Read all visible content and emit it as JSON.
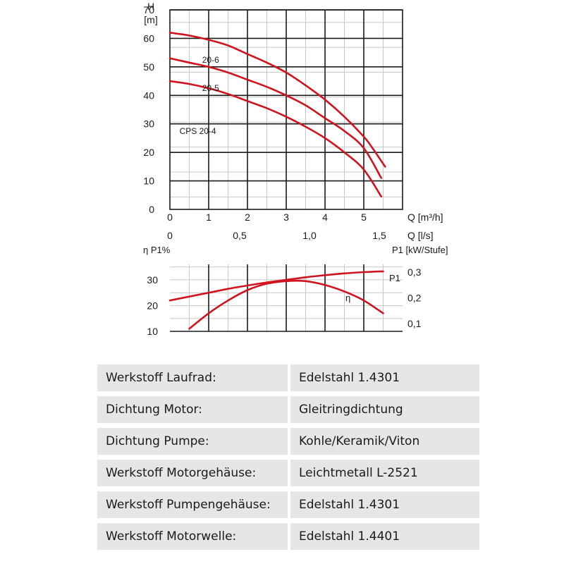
{
  "chart_data": [
    {
      "type": "line",
      "title": "",
      "ylabel_top": "H",
      "ylabel_unit": "[m]",
      "xlabel": "Q [m³/h]",
      "x2label": "Q [l/s]",
      "xlim": [
        0,
        6
      ],
      "ylim": [
        0,
        70
      ],
      "x_ticks": [
        "0",
        "1",
        "2",
        "3",
        "4",
        "5"
      ],
      "x2_ticks": [
        {
          "value": 0,
          "label": "0"
        },
        {
          "value": 0.5,
          "label": "0,5"
        },
        {
          "value": 1.0,
          "label": "1,0"
        },
        {
          "value": 1.5,
          "label": "1,5"
        }
      ],
      "y_ticks": [
        "0",
        "10",
        "20",
        "30",
        "40",
        "50",
        "60",
        "70"
      ],
      "series": [
        {
          "name": "20-6",
          "x": [
            0,
            0.5,
            1,
            1.5,
            2,
            2.5,
            3,
            3.5,
            4,
            4.5,
            5,
            5.2,
            5.55
          ],
          "y": [
            62,
            61,
            59.5,
            57.5,
            54.5,
            51.5,
            48,
            43.5,
            38.5,
            32.5,
            25.5,
            22,
            15
          ]
        },
        {
          "name": "20-5",
          "x": [
            0,
            0.5,
            1,
            1.5,
            2,
            2.5,
            3,
            3.5,
            4,
            4.5,
            5,
            5.45
          ],
          "y": [
            53,
            51.5,
            50,
            48,
            45.5,
            43,
            40,
            36.5,
            32,
            27.5,
            21.5,
            11
          ]
        },
        {
          "name": "CPS 20-4",
          "x": [
            0,
            0.5,
            1,
            1.5,
            2,
            2.5,
            3,
            3.5,
            4,
            4.5,
            5,
            5.45
          ],
          "y": [
            45,
            44,
            42.5,
            40.5,
            38,
            35.5,
            32.5,
            29,
            25,
            20,
            14,
            4.5
          ]
        }
      ],
      "grid": true
    },
    {
      "type": "line",
      "title": "",
      "ylabel_left": "η P1%",
      "ylabel_right": "P1 [kW/Stufe]",
      "xlim": [
        0,
        6
      ],
      "y_ticks_left": [
        "10",
        "20",
        "30"
      ],
      "y_ticks_right": [
        "0,1",
        "0,2",
        "0,3"
      ],
      "ylim_left": [
        10,
        36
      ],
      "ylim_right": [
        0.07,
        0.33
      ],
      "series": [
        {
          "name": "P1",
          "x": [
            0,
            0.5,
            1,
            1.5,
            2,
            2.5,
            3,
            3.5,
            4,
            4.5,
            5,
            5.5
          ],
          "y": [
            0.19,
            0.205,
            0.22,
            0.235,
            0.248,
            0.26,
            0.27,
            0.28,
            0.288,
            0.295,
            0.3,
            0.303
          ]
        },
        {
          "name": "η",
          "x": [
            0.5,
            1,
            1.5,
            2,
            2.5,
            3,
            3.5,
            4,
            4.5,
            5,
            5.5
          ],
          "y": [
            11,
            17,
            22,
            26,
            28.5,
            29.5,
            29.5,
            28,
            25.5,
            22,
            17
          ]
        }
      ],
      "grid": true
    }
  ],
  "specs": [
    {
      "key": "Werkstoff Laufrad:",
      "value": "Edelstahl 1.4301"
    },
    {
      "key": "Dichtung Motor:",
      "value": "Gleitringdichtung"
    },
    {
      "key": "Dichtung Pumpe:",
      "value": "Kohle/Keramik/Viton"
    },
    {
      "key": "Werkstoff Motorgehäuse:",
      "value": "Leichtmetall L-2521"
    },
    {
      "key": "Werkstoff Pumpengehäuse:",
      "value": "Edelstahl 1.4301"
    },
    {
      "key": "Werkstoff Motorwelle:",
      "value": "Edelstahl 1.4401"
    }
  ],
  "colors": {
    "curve": "#d0141f",
    "table_bg": "#e6e6e6"
  }
}
